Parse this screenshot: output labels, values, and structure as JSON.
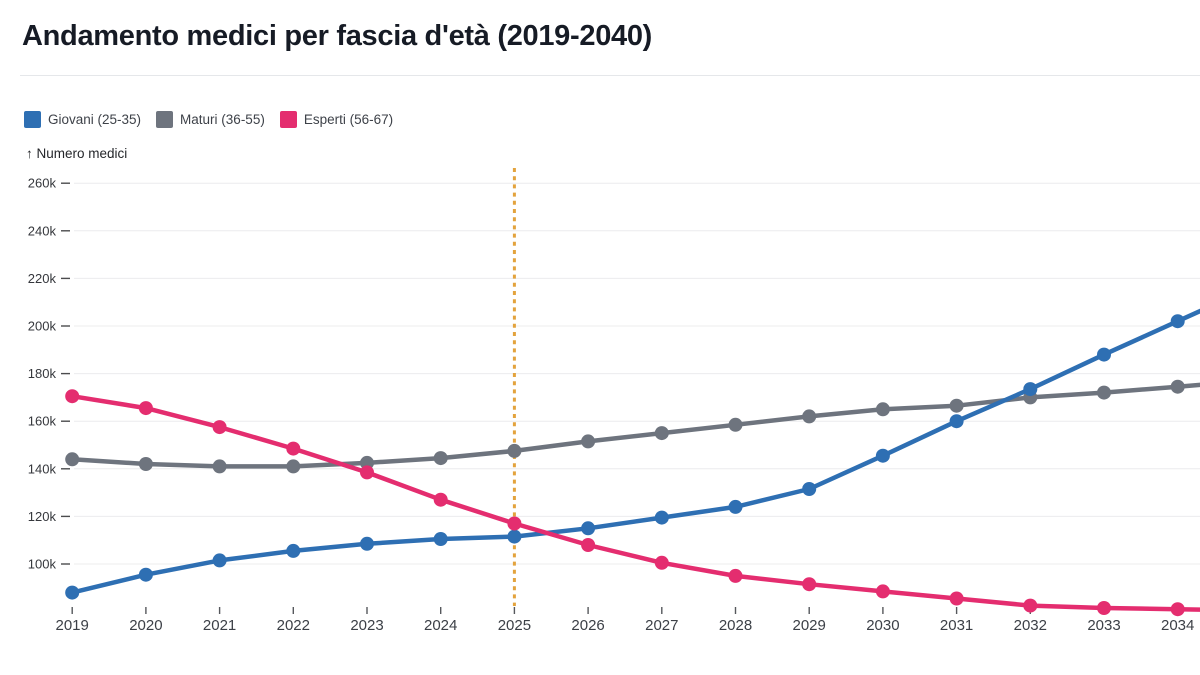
{
  "header": {
    "title": "Andamento medici per fascia d'età (2019-2040)"
  },
  "chart_meta": {
    "y_axis_title": "↑ Numero medici"
  },
  "chart_data": {
    "type": "line",
    "title": "Andamento medici per fascia d'età (2019-2040)",
    "ylabel": "Numero medici",
    "x": [
      2019,
      2020,
      2021,
      2022,
      2023,
      2024,
      2025,
      2026,
      2027,
      2028,
      2029,
      2030,
      2031,
      2032,
      2033,
      2034
    ],
    "x_visible_range": [
      2019,
      2034
    ],
    "unit": "thousands of doctors",
    "y_ticks_k": [
      100,
      120,
      140,
      160,
      180,
      200,
      220,
      240,
      260
    ],
    "y_tick_suffix": "k",
    "ylim_k": [
      80,
      268
    ],
    "grid": "horizontal",
    "legend_position": "top-left",
    "series": [
      {
        "name": "Giovani (25-35)",
        "slug": "giovani",
        "color": "#2e6fb3",
        "values_k": [
          88,
          95.5,
          101.5,
          105.5,
          108.5,
          110.5,
          111.5,
          115,
          119.5,
          124,
          131.5,
          145.5,
          160,
          173.5,
          188,
          202
        ]
      },
      {
        "name": "Maturi (36-55)",
        "slug": "maturi",
        "color": "#6e747e",
        "values_k": [
          144,
          142,
          141,
          141,
          142.5,
          144.5,
          147.5,
          151.5,
          155,
          158.5,
          162,
          165,
          166.5,
          170,
          172,
          174.5
        ]
      },
      {
        "name": "Esperti (56-67)",
        "slug": "esperti",
        "color": "#e42d6f",
        "values_k": [
          170.5,
          165.5,
          157.5,
          148.5,
          138.5,
          127,
          117,
          108,
          100.5,
          95,
          91.5,
          88.5,
          85.5,
          82.5,
          81.5,
          81
        ]
      }
    ],
    "reference_line": {
      "x": 2025,
      "style": "dashed",
      "color": "#e3a33d"
    },
    "draw_order": [
      "Maturi (36-55)",
      "Giovani (25-35)",
      "Esperti (56-67)"
    ]
  }
}
